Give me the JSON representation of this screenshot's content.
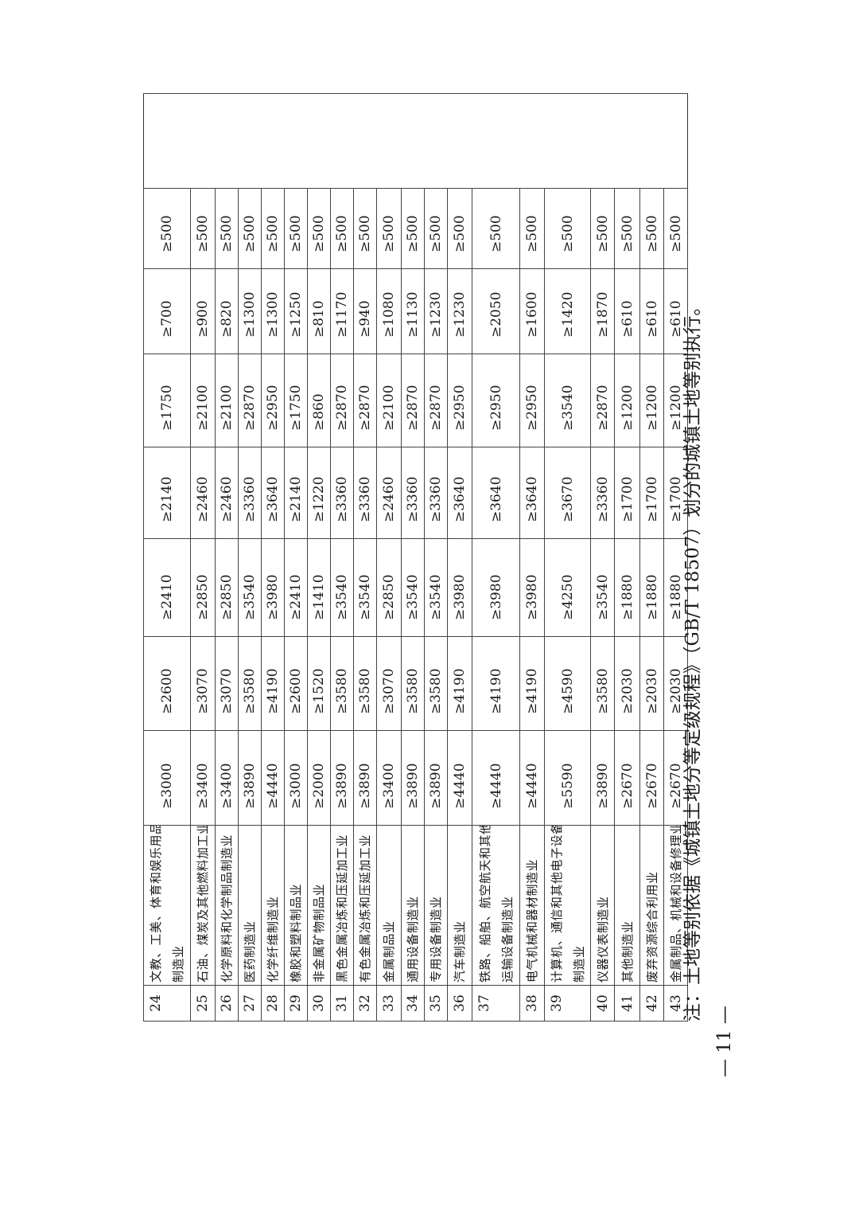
{
  "table": {
    "rows": [
      {
        "no": "24",
        "name": [
          "文教、工美、体育和娱乐用品",
          "制造业"
        ],
        "values": [
          "≥3000",
          "≥2600",
          "≥2410",
          "≥2140",
          "≥1750",
          "≥700",
          "≥500"
        ]
      },
      {
        "no": "25",
        "name": [
          "石油、煤炭及其他燃料加工业"
        ],
        "values": [
          "≥3400",
          "≥3070",
          "≥2850",
          "≥2460",
          "≥2100",
          "≥900",
          "≥500"
        ]
      },
      {
        "no": "26",
        "name": [
          "化学原料和化学制品制造业"
        ],
        "values": [
          "≥3400",
          "≥3070",
          "≥2850",
          "≥2460",
          "≥2100",
          "≥820",
          "≥500"
        ]
      },
      {
        "no": "27",
        "name": [
          "医药制造业"
        ],
        "values": [
          "≥3890",
          "≥3580",
          "≥3540",
          "≥3360",
          "≥2870",
          "≥1300",
          "≥500"
        ]
      },
      {
        "no": "28",
        "name": [
          "化学纤维制造业"
        ],
        "values": [
          "≥4440",
          "≥4190",
          "≥3980",
          "≥3640",
          "≥2950",
          "≥1300",
          "≥500"
        ]
      },
      {
        "no": "29",
        "name": [
          "橡胶和塑料制品业"
        ],
        "values": [
          "≥3000",
          "≥2600",
          "≥2410",
          "≥2140",
          "≥1750",
          "≥1250",
          "≥500"
        ]
      },
      {
        "no": "30",
        "name": [
          "非金属矿物制品业"
        ],
        "values": [
          "≥2000",
          "≥1520",
          "≥1410",
          "≥1220",
          "≥860",
          "≥810",
          "≥500"
        ]
      },
      {
        "no": "31",
        "name": [
          "黑色金属冶炼和压延加工业"
        ],
        "values": [
          "≥3890",
          "≥3580",
          "≥3540",
          "≥3360",
          "≥2870",
          "≥1170",
          "≥500"
        ]
      },
      {
        "no": "32",
        "name": [
          "有色金属冶炼和压延加工业"
        ],
        "values": [
          "≥3890",
          "≥3580",
          "≥3540",
          "≥3360",
          "≥2870",
          "≥940",
          "≥500"
        ]
      },
      {
        "no": "33",
        "name": [
          "金属制品业"
        ],
        "values": [
          "≥3400",
          "≥3070",
          "≥2850",
          "≥2460",
          "≥2100",
          "≥1080",
          "≥500"
        ]
      },
      {
        "no": "34",
        "name": [
          "通用设备制造业"
        ],
        "values": [
          "≥3890",
          "≥3580",
          "≥3540",
          "≥3360",
          "≥2870",
          "≥1130",
          "≥500"
        ]
      },
      {
        "no": "35",
        "name": [
          "专用设备制造业"
        ],
        "values": [
          "≥3890",
          "≥3580",
          "≥3540",
          "≥3360",
          "≥2870",
          "≥1230",
          "≥500"
        ]
      },
      {
        "no": "36",
        "name": [
          "汽车制造业"
        ],
        "values": [
          "≥4440",
          "≥4190",
          "≥3980",
          "≥3640",
          "≥2950",
          "≥1230",
          "≥500"
        ]
      },
      {
        "no": "37",
        "name": [
          "铁路、船舶、航空航天和其他",
          "运输设备制造业"
        ],
        "values": [
          "≥4440",
          "≥4190",
          "≥3980",
          "≥3640",
          "≥2950",
          "≥2050",
          "≥500"
        ]
      },
      {
        "no": "38",
        "name": [
          "电气机械和器材制造业"
        ],
        "values": [
          "≥4440",
          "≥4190",
          "≥3980",
          "≥3640",
          "≥2950",
          "≥1600",
          "≥500"
        ]
      },
      {
        "no": "39",
        "name": [
          "计算机、通信和其他电子设备",
          "制造业"
        ],
        "values": [
          "≥5590",
          "≥4590",
          "≥4250",
          "≥3670",
          "≥3540",
          "≥1420",
          "≥500"
        ]
      },
      {
        "no": "40",
        "name": [
          "仪器仪表制造业"
        ],
        "values": [
          "≥3890",
          "≥3580",
          "≥3540",
          "≥3360",
          "≥2870",
          "≥1870",
          "≥500"
        ]
      },
      {
        "no": "41",
        "name": [
          "其他制造业"
        ],
        "values": [
          "≥2670",
          "≥2030",
          "≥1880",
          "≥1700",
          "≥1200",
          "≥610",
          "≥500"
        ]
      },
      {
        "no": "42",
        "name": [
          "废弃资源综合利用业"
        ],
        "values": [
          "≥2670",
          "≥2030",
          "≥1880",
          "≥1700",
          "≥1200",
          "≥610",
          "≥500"
        ]
      },
      {
        "no": "43",
        "name": [
          "金属制品、机械和设备修理业"
        ],
        "values": [
          "≥2670",
          "≥2030",
          "≥1880",
          "≥1700",
          "≥1200",
          "≥610",
          "≥500"
        ]
      }
    ]
  },
  "note": "注：土地等别依据《城镇土地分等定级规程》（GB/T 18507）划分的城镇土地等别执行。",
  "page_number": "— 11 —"
}
